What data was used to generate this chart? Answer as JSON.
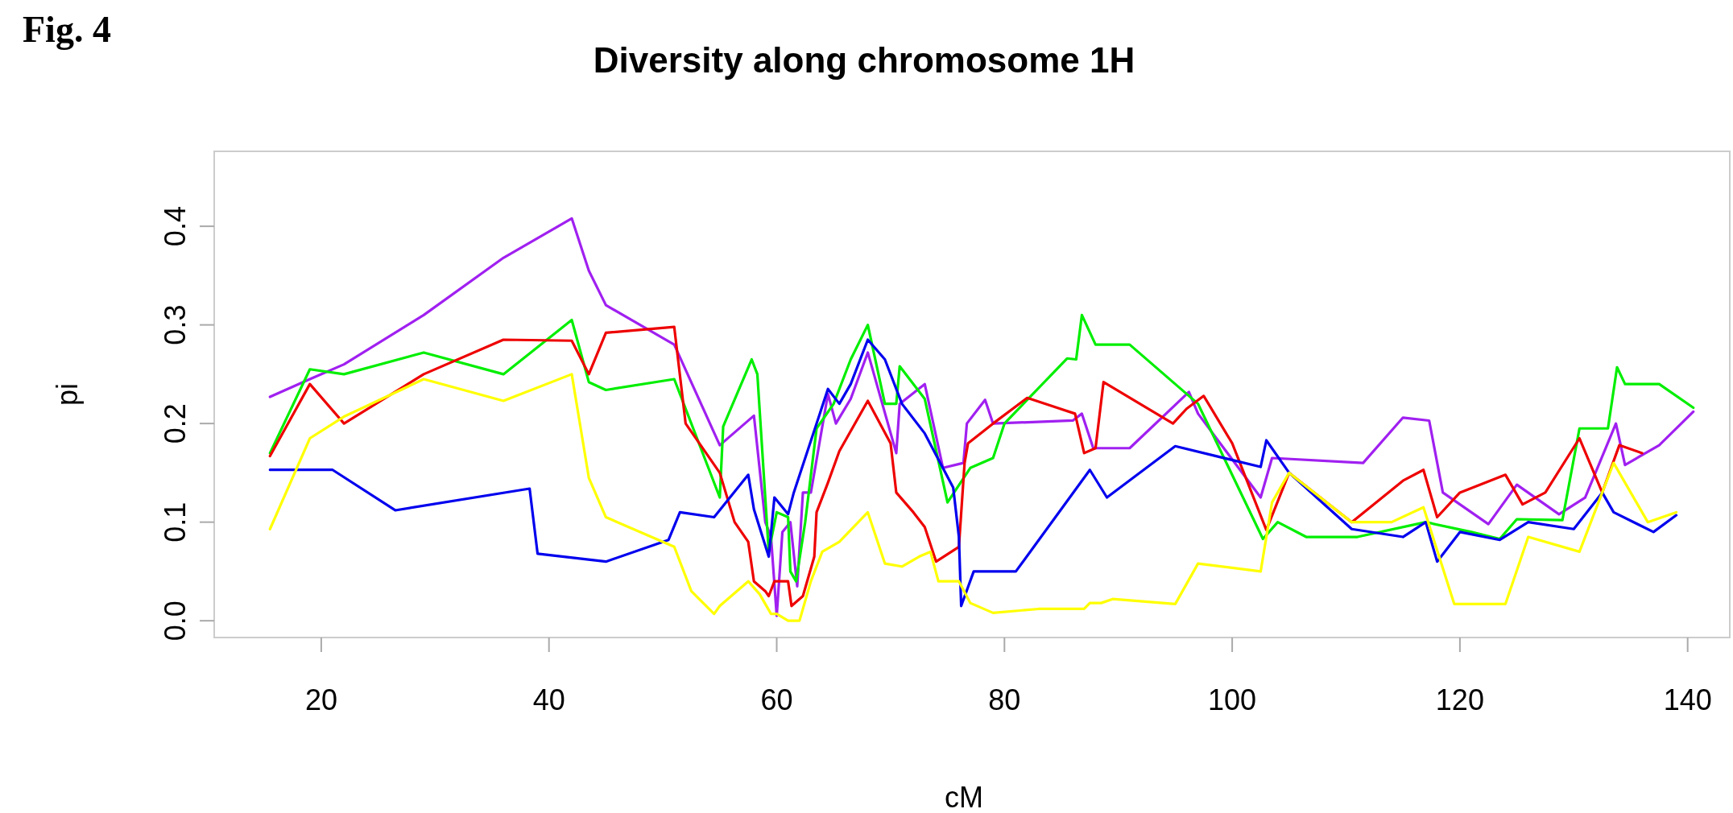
{
  "chart_data": {
    "type": "line",
    "title": "Diversity along chromosome 1H",
    "xlabel": "cM",
    "ylabel": "pi",
    "annotations": [
      "Fig. 4"
    ],
    "xlim": [
      10.6,
      143.7
    ],
    "ylim": [
      -0.017,
      0.476
    ],
    "xticks": [
      20,
      40,
      60,
      80,
      100,
      120,
      140
    ],
    "yticks": [
      {
        "value": 0,
        "label": "0.0"
      },
      0.1,
      0.2,
      0.3,
      0.4
    ],
    "grid": false,
    "line_style": "solid",
    "marker": "none",
    "series": [
      {
        "color": "#a020f0",
        "x": [
          15.5,
          19,
          22,
          29,
          36,
          42,
          43.5,
          45,
          51,
          55,
          58,
          59,
          59.5,
          60,
          60.5,
          61.2,
          61.8,
          62.3,
          63,
          64.5,
          65.2,
          66.5,
          68,
          70.5,
          70.8,
          73,
          74.6,
          76.4,
          76.7,
          78.3,
          79,
          86,
          86.8,
          87.8,
          91,
          96.2,
          97,
          102.5,
          103.5,
          111.5,
          115,
          117.3,
          118.5,
          122.5,
          125,
          128.7,
          131,
          133.7,
          134.5,
          137.5,
          140.5
        ],
        "values": [
          0.227,
          0.245,
          0.26,
          0.31,
          0.368,
          0.408,
          0.355,
          0.32,
          0.28,
          0.178,
          0.208,
          0.1,
          0.085,
          0.005,
          0.09,
          0.1,
          0.035,
          0.13,
          0.13,
          0.23,
          0.2,
          0.225,
          0.272,
          0.17,
          0.22,
          0.24,
          0.155,
          0.16,
          0.2,
          0.224,
          0.2,
          0.203,
          0.21,
          0.175,
          0.175,
          0.232,
          0.21,
          0.125,
          0.165,
          0.16,
          0.206,
          0.203,
          0.13,
          0.098,
          0.138,
          0.108,
          0.125,
          0.2,
          0.158,
          0.178,
          0.212
        ]
      },
      {
        "color": "#00ee00",
        "x": [
          15.5,
          19,
          22,
          29,
          36,
          42,
          43.5,
          45,
          51,
          55,
          55.3,
          57.8,
          58.3,
          59.3,
          60,
          61,
          61.2,
          61.7,
          62.5,
          63.5,
          65,
          66.5,
          68,
          69.5,
          70.5,
          70.8,
          73,
          75,
          77,
          79,
          80,
          85.5,
          86.3,
          86.8,
          88,
          91,
          97,
          102.7,
          104,
          106.5,
          111,
          117,
          121,
          123.5,
          125,
          129,
          130.5,
          133,
          133.8,
          134.5,
          137.5,
          140.5
        ],
        "values": [
          0.17,
          0.255,
          0.25,
          0.272,
          0.25,
          0.305,
          0.242,
          0.234,
          0.245,
          0.125,
          0.197,
          0.265,
          0.25,
          0.07,
          0.11,
          0.105,
          0.05,
          0.04,
          0.1,
          0.195,
          0.22,
          0.265,
          0.3,
          0.22,
          0.22,
          0.258,
          0.225,
          0.12,
          0.155,
          0.165,
          0.2,
          0.266,
          0.265,
          0.31,
          0.28,
          0.28,
          0.22,
          0.083,
          0.1,
          0.085,
          0.085,
          0.1,
          0.09,
          0.083,
          0.103,
          0.102,
          0.195,
          0.195,
          0.257,
          0.24,
          0.24,
          0.216
        ]
      },
      {
        "color": "#ee0000",
        "x": [
          15.5,
          19,
          22,
          29,
          36,
          42,
          43.5,
          45,
          51,
          52,
          55,
          56.3,
          57.5,
          58,
          59,
          59.3,
          59.8,
          61,
          61.3,
          62.3,
          63.3,
          63.5,
          64.5,
          65.5,
          68,
          70,
          70.5,
          72,
          73,
          74,
          76,
          76.5,
          76.8,
          79,
          82,
          86.2,
          87,
          88,
          88.7,
          94.8,
          96,
          97.5,
          100,
          103,
          105,
          110.5,
          115,
          116.8,
          118,
          120,
          124,
          125.5,
          127.5,
          130.5,
          132.5,
          134,
          136
        ],
        "values": [
          0.167,
          0.24,
          0.2,
          0.25,
          0.285,
          0.284,
          0.25,
          0.292,
          0.298,
          0.2,
          0.15,
          0.1,
          0.08,
          0.04,
          0.03,
          0.025,
          0.04,
          0.04,
          0.015,
          0.025,
          0.065,
          0.11,
          0.14,
          0.172,
          0.223,
          0.18,
          0.13,
          0.11,
          0.095,
          0.06,
          0.075,
          0.16,
          0.18,
          0.2,
          0.226,
          0.21,
          0.17,
          0.175,
          0.242,
          0.2,
          0.215,
          0.228,
          0.18,
          0.092,
          0.15,
          0.1,
          0.142,
          0.153,
          0.105,
          0.13,
          0.148,
          0.118,
          0.13,
          0.185,
          0.13,
          0.178,
          0.17
        ]
      },
      {
        "color": "#0000ee",
        "x": [
          15.5,
          21,
          26.5,
          38.3,
          39,
          45,
          50.5,
          51.5,
          54.5,
          57.5,
          58,
          59.3,
          59.8,
          61,
          61.5,
          63.5,
          64.5,
          65.5,
          66.5,
          68,
          69.5,
          71,
          73,
          75.5,
          76,
          76.2,
          77.3,
          81,
          87.5,
          89,
          95,
          102.5,
          103,
          105,
          110.5,
          115,
          117,
          118,
          120,
          123.5,
          126,
          130,
          132.5,
          133.5,
          137,
          139
        ],
        "values": [
          0.153,
          0.153,
          0.112,
          0.134,
          0.068,
          0.06,
          0.082,
          0.11,
          0.105,
          0.148,
          0.113,
          0.065,
          0.125,
          0.108,
          0.13,
          0.2,
          0.235,
          0.22,
          0.24,
          0.285,
          0.265,
          0.22,
          0.19,
          0.135,
          0.085,
          0.015,
          0.05,
          0.05,
          0.153,
          0.125,
          0.177,
          0.156,
          0.183,
          0.15,
          0.093,
          0.085,
          0.1,
          0.06,
          0.09,
          0.082,
          0.1,
          0.093,
          0.13,
          0.11,
          0.09,
          0.107
        ]
      },
      {
        "color": "#ffff00",
        "x": [
          15.5,
          19,
          22,
          29,
          36,
          42,
          43.5,
          45,
          51,
          52.5,
          54.5,
          55,
          57.5,
          58.5,
          59.5,
          60,
          61,
          62,
          63,
          64,
          65.5,
          68,
          69.5,
          71,
          72.5,
          73.5,
          74.2,
          76,
          77,
          79,
          83,
          87,
          87.5,
          88.5,
          89.5,
          95,
          97,
          102.5,
          103.5,
          105,
          110.5,
          114,
          116.8,
          119.5,
          124,
          126,
          130.5,
          133.5,
          136.5,
          139
        ],
        "values": [
          0.093,
          0.185,
          0.207,
          0.245,
          0.223,
          0.25,
          0.145,
          0.105,
          0.075,
          0.03,
          0.007,
          0.015,
          0.04,
          0.027,
          0.007,
          0.007,
          0.0,
          0.0,
          0.04,
          0.07,
          0.08,
          0.11,
          0.058,
          0.055,
          0.065,
          0.07,
          0.04,
          0.04,
          0.018,
          0.008,
          0.012,
          0.012,
          0.018,
          0.018,
          0.022,
          0.017,
          0.058,
          0.05,
          0.12,
          0.15,
          0.1,
          0.1,
          0.115,
          0.017,
          0.017,
          0.085,
          0.07,
          0.16,
          0.1,
          0.11
        ]
      }
    ]
  }
}
